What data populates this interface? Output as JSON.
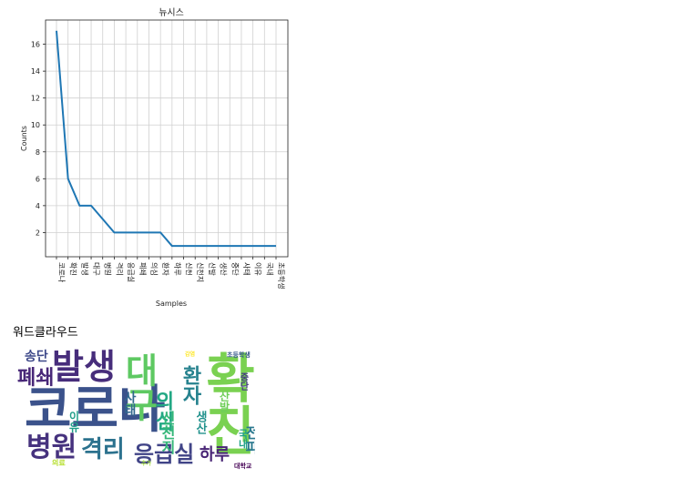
{
  "chart_data": {
    "type": "line",
    "title": "뉴시스",
    "xlabel": "Samples",
    "ylabel": "Counts",
    "categories": [
      "코로나",
      "확진",
      "발생",
      "대구",
      "병원",
      "격리",
      "응급실",
      "폐쇄",
      "의심",
      "환자",
      "하루",
      "신천",
      "신천지",
      "산발",
      "생산",
      "중단",
      "사태",
      "이유",
      "국내",
      "초등학생"
    ],
    "values": [
      17,
      6,
      4,
      4,
      3,
      2,
      2,
      2,
      2,
      2,
      1,
      1,
      1,
      1,
      1,
      1,
      1,
      1,
      1,
      1
    ],
    "yticks": [
      2,
      4,
      6,
      8,
      10,
      12,
      14,
      16
    ],
    "ylim": [
      0.2,
      17.8
    ],
    "grid": true,
    "line_color": "#1f77b4"
  },
  "wordcloud": {
    "heading": "워드클라우드",
    "words": [
      {
        "text": "코로나",
        "color": "#3b528b"
      },
      {
        "text": "확진",
        "color": "#7ad151"
      },
      {
        "text": "발생",
        "color": "#472d7b"
      },
      {
        "text": "대구",
        "color": "#5ec962"
      },
      {
        "text": "병원",
        "color": "#46327e"
      },
      {
        "text": "격리",
        "color": "#2c728e"
      },
      {
        "text": "응급실",
        "color": "#414487"
      },
      {
        "text": "폐쇄",
        "color": "#482878"
      },
      {
        "text": "환자",
        "color": "#26828e"
      },
      {
        "text": "의심",
        "color": "#22a884"
      },
      {
        "text": "신천지",
        "color": "#35b779"
      },
      {
        "text": "송단",
        "color": "#3e4989"
      },
      {
        "text": "사태",
        "color": "#31688e"
      },
      {
        "text": "생산",
        "color": "#21918c"
      },
      {
        "text": "이유",
        "color": "#1f9e89"
      },
      {
        "text": "산발",
        "color": "#6ece58"
      },
      {
        "text": "전파",
        "color": "#2a788e"
      },
      {
        "text": "중단",
        "color": "#443983"
      },
      {
        "text": "국내",
        "color": "#1fa187"
      },
      {
        "text": "하루",
        "color": "#482475"
      },
      {
        "text": "대학교",
        "color": "#440154"
      },
      {
        "text": "초등학생",
        "color": "#38588c"
      },
      {
        "text": "감염",
        "color": "#fde725"
      },
      {
        "text": "의료",
        "color": "#b5de2b"
      },
      {
        "text": "추가",
        "color": "#a0da39"
      }
    ]
  }
}
